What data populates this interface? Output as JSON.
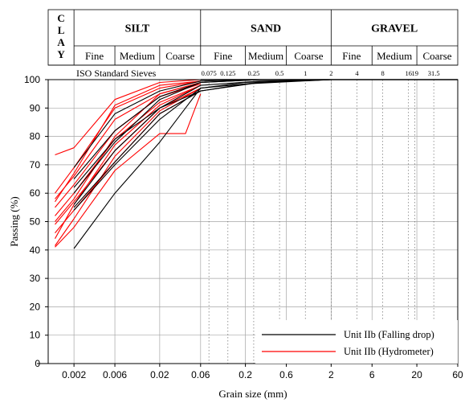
{
  "chart_data": {
    "type": "line",
    "xlabel": "Grain size (mm)",
    "ylabel": "Passing (%)",
    "xscale": "log",
    "xlim": [
      0.001,
      60
    ],
    "ylim": [
      0,
      100
    ],
    "x_ticks": [
      {
        "v": 0.002,
        "label": "0.002"
      },
      {
        "v": 0.006,
        "label": "0.006"
      },
      {
        "v": 0.02,
        "label": "0.02"
      },
      {
        "v": 0.06,
        "label": "0.06"
      },
      {
        "v": 0.2,
        "label": "0.2"
      },
      {
        "v": 0.6,
        "label": "0.6"
      },
      {
        "v": 2,
        "label": "2"
      },
      {
        "v": 6,
        "label": "6"
      },
      {
        "v": 20,
        "label": "20"
      },
      {
        "v": 60,
        "label": "60"
      }
    ],
    "y_ticks": [
      0,
      10,
      20,
      30,
      40,
      50,
      60,
      70,
      80,
      90,
      100
    ],
    "classification": {
      "clay_letters": [
        "C",
        "L",
        "A",
        "Y"
      ],
      "groups": [
        {
          "name": "SILT",
          "from": 0.002,
          "to": 0.06,
          "subs": [
            {
              "name": "Fine",
              "from": 0.002,
              "to": 0.006
            },
            {
              "name": "Medium",
              "from": 0.006,
              "to": 0.02
            },
            {
              "name": "Coarse",
              "from": 0.02,
              "to": 0.06
            }
          ]
        },
        {
          "name": "SAND",
          "from": 0.06,
          "to": 2,
          "subs": [
            {
              "name": "Fine",
              "from": 0.06,
              "to": 0.2
            },
            {
              "name": "Medium",
              "from": 0.2,
              "to": 0.6
            },
            {
              "name": "Coarse",
              "from": 0.6,
              "to": 2
            }
          ]
        },
        {
          "name": "GRAVEL",
          "from": 2,
          "to": 60,
          "subs": [
            {
              "name": "Fine",
              "from": 2,
              "to": 6
            },
            {
              "name": "Medium",
              "from": 6,
              "to": 20
            },
            {
              "name": "Coarse",
              "from": 20,
              "to": 60
            }
          ]
        }
      ]
    },
    "iso_sieves": {
      "label": "ISO Standard Sieves",
      "sizes": [
        {
          "v": 0.075,
          "label": "0.075"
        },
        {
          "v": 0.125,
          "label": "0.125"
        },
        {
          "v": 0.25,
          "label": "0.25"
        },
        {
          "v": 0.5,
          "label": "0.5"
        },
        {
          "v": 1,
          "label": "1"
        },
        {
          "v": 2,
          "label": "2"
        },
        {
          "v": 4,
          "label": "4"
        },
        {
          "v": 8,
          "label": "8"
        },
        {
          "v": 16,
          "label": "16"
        },
        {
          "v": 19,
          "label": "19"
        },
        {
          "v": 31.5,
          "label": "31.5"
        }
      ]
    },
    "legend": {
      "position": "bottom-right",
      "entries": [
        {
          "name": "Unit IIb (Falling drop)",
          "color": "#000000"
        },
        {
          "name": "Unit IIb (Hydrometer)",
          "color": "#ff0000"
        }
      ]
    },
    "series": [
      {
        "name": "Unit IIb (Falling drop)",
        "color": "#000000",
        "curves": [
          [
            [
              0.002,
              40.5
            ],
            [
              0.006,
              60
            ],
            [
              0.02,
              78
            ],
            [
              0.04,
              90
            ],
            [
              0.06,
              97
            ],
            [
              0.2,
              99
            ],
            [
              2,
              100
            ]
          ],
          [
            [
              0.002,
              54
            ],
            [
              0.006,
              70
            ],
            [
              0.02,
              86
            ],
            [
              0.06,
              97
            ],
            [
              0.3,
              99
            ],
            [
              2,
              100
            ]
          ],
          [
            [
              0.002,
              56
            ],
            [
              0.006,
              75
            ],
            [
              0.02,
              90
            ],
            [
              0.06,
              98
            ],
            [
              0.3,
              99.5
            ],
            [
              2,
              100
            ]
          ],
          [
            [
              0.002,
              62
            ],
            [
              0.006,
              79
            ],
            [
              0.02,
              90
            ],
            [
              0.06,
              96
            ],
            [
              0.2,
              98.5
            ],
            [
              2,
              100
            ]
          ],
          [
            [
              0.002,
              65
            ],
            [
              0.006,
              82
            ],
            [
              0.02,
              94
            ],
            [
              0.06,
              99
            ],
            [
              0.3,
              100
            ]
          ],
          [
            [
              0.002,
              69
            ],
            [
              0.006,
              88
            ],
            [
              0.02,
              96
            ],
            [
              0.06,
              99.5
            ],
            [
              0.3,
              100
            ]
          ],
          [
            [
              0.002,
              60
            ],
            [
              0.006,
              78
            ],
            [
              0.02,
              93
            ],
            [
              0.06,
              99
            ],
            [
              0.3,
              100
            ]
          ],
          [
            [
              0.002,
              55
            ],
            [
              0.006,
              71
            ],
            [
              0.02,
              88
            ],
            [
              0.06,
              96
            ],
            [
              0.3,
              99
            ],
            [
              2,
              100
            ]
          ]
        ]
      },
      {
        "name": "Unit IIb (Hydrometer)",
        "color": "#ff0000",
        "curves": [
          [
            [
              0.0012,
              73.5
            ],
            [
              0.002,
              76
            ],
            [
              0.006,
              93
            ],
            [
              0.02,
              99
            ],
            [
              0.06,
              100
            ]
          ],
          [
            [
              0.0012,
              60
            ],
            [
              0.002,
              69
            ],
            [
              0.006,
              90
            ],
            [
              0.02,
              97
            ],
            [
              0.06,
              99.5
            ]
          ],
          [
            [
              0.0012,
              58
            ],
            [
              0.002,
              66
            ],
            [
              0.006,
              86
            ],
            [
              0.02,
              95
            ],
            [
              0.06,
              99
            ]
          ],
          [
            [
              0.0012,
              55
            ],
            [
              0.002,
              63
            ],
            [
              0.006,
              82
            ],
            [
              0.02,
              94
            ],
            [
              0.06,
              98.5
            ]
          ],
          [
            [
              0.0012,
              52
            ],
            [
              0.002,
              60
            ],
            [
              0.006,
              79
            ],
            [
              0.02,
              92
            ],
            [
              0.06,
              98
            ]
          ],
          [
            [
              0.0012,
              49
            ],
            [
              0.002,
              57
            ],
            [
              0.006,
              75
            ],
            [
              0.02,
              90
            ],
            [
              0.06,
              97
            ]
          ],
          [
            [
              0.0012,
              46
            ],
            [
              0.002,
              54
            ],
            [
              0.006,
              71
            ],
            [
              0.02,
              88
            ],
            [
              0.06,
              96
            ]
          ],
          [
            [
              0.0012,
              41
            ],
            [
              0.002,
              48
            ],
            [
              0.006,
              68
            ],
            [
              0.02,
              81
            ],
            [
              0.04,
              81
            ],
            [
              0.06,
              95
            ]
          ],
          [
            [
              0.0012,
              41.5
            ],
            [
              0.002,
              51
            ],
            [
              0.006,
              73
            ],
            [
              0.02,
              89
            ],
            [
              0.06,
              97
            ]
          ],
          [
            [
              0.0012,
              57
            ],
            [
              0.002,
              67
            ],
            [
              0.006,
              91
            ],
            [
              0.02,
              98
            ],
            [
              0.06,
              99.5
            ]
          ],
          [
            [
              0.0012,
              50
            ],
            [
              0.002,
              58
            ],
            [
              0.006,
              80
            ],
            [
              0.02,
              95
            ],
            [
              0.06,
              99
            ]
          ],
          [
            [
              0.0012,
              44
            ],
            [
              0.002,
              56
            ],
            [
              0.006,
              77
            ],
            [
              0.02,
              91
            ],
            [
              0.06,
              98
            ]
          ]
        ]
      }
    ]
  }
}
